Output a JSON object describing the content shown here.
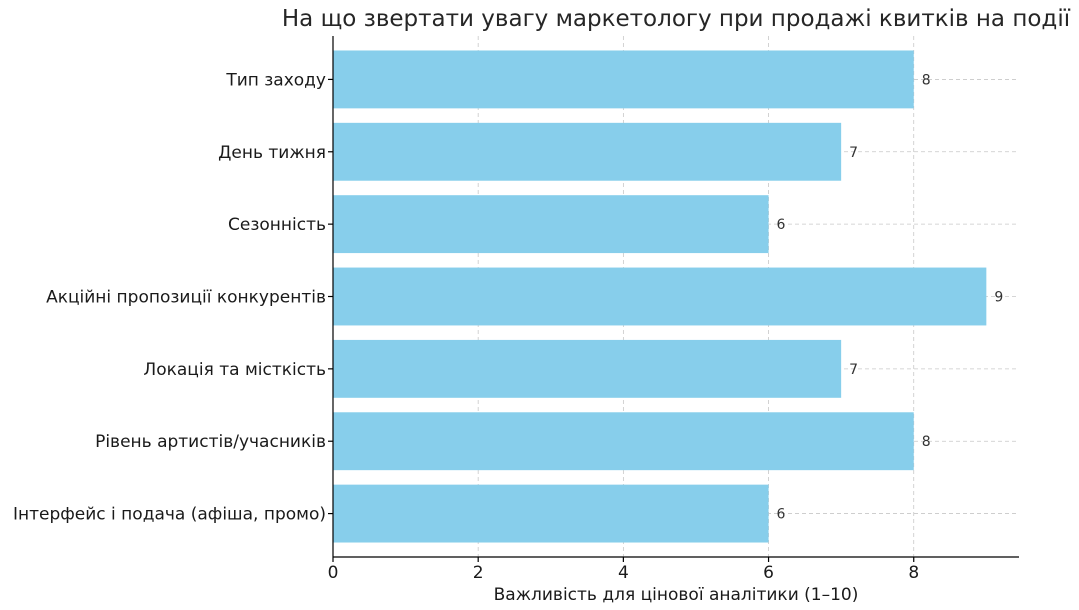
{
  "chart_data": {
    "type": "bar",
    "orientation": "horizontal",
    "title": "На що звертати увагу маркетологу при продажі квитків на події",
    "xlabel": "Важливість для цінової аналітики (1–10)",
    "ylabel": "",
    "categories": [
      "Тип заходу",
      "День тижня",
      "Сезонність",
      "Акційні пропозиції конкурентів",
      "Локація та місткість",
      "Рівень артистів/учасників",
      "Інтерфейс і подача (афіша, промо)"
    ],
    "values": [
      8,
      7,
      6,
      9,
      7,
      8,
      6
    ],
    "xlim": [
      0,
      9.45
    ],
    "xticks": [
      0,
      2,
      4,
      6,
      8
    ],
    "grid": true,
    "bar_color": "#87CEEB",
    "data_labels": true
  }
}
